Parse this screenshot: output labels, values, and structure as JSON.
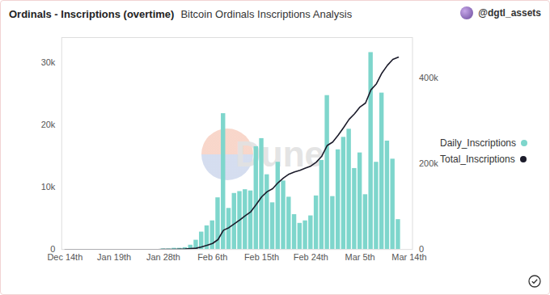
{
  "chart_data": {
    "type": "bar",
    "title": "Ordinals - Inscriptions (overtime)",
    "subtitle": "Bitcoin Ordinals Inscriptions Analysis",
    "source": "@dgtl_assets",
    "annotations": [
      "Dune"
    ],
    "categories": [
      "Dec 14th",
      null,
      null,
      null,
      null,
      null,
      null,
      null,
      null,
      "Jan 19th",
      null,
      null,
      null,
      null,
      null,
      null,
      null,
      null,
      "Jan 28th",
      null,
      null,
      null,
      null,
      null,
      null,
      null,
      null,
      "Feb 6th",
      null,
      null,
      null,
      null,
      null,
      null,
      null,
      null,
      "Feb 15th",
      null,
      null,
      null,
      null,
      null,
      null,
      null,
      null,
      "Feb 24th",
      null,
      null,
      null,
      null,
      null,
      null,
      null,
      null,
      "Mar 5th",
      null,
      null,
      null,
      null,
      null,
      null,
      null,
      null,
      "Mar 14th"
    ],
    "series": [
      {
        "name": "Daily_Inscriptions",
        "type": "bar",
        "color": "#7ed6cc",
        "values": [
          0,
          0,
          0,
          0,
          0,
          0,
          0,
          0,
          0,
          0,
          0,
          0,
          0,
          0,
          0,
          0,
          0,
          0,
          100,
          100,
          200,
          200,
          300,
          700,
          1500,
          2800,
          3800,
          4600,
          8300,
          21800,
          6600,
          9000,
          9300,
          9600,
          9400,
          16500,
          17800,
          12000,
          7500,
          14000,
          11000,
          8400,
          5600,
          4200,
          4600,
          5400,
          8600,
          14300,
          24700,
          8500,
          16000,
          18000,
          19300,
          13000,
          15500,
          8800,
          31600,
          14000,
          25100,
          17400,
          14500,
          4800,
          null,
          null
        ]
      },
      {
        "name": "Total_Inscriptions",
        "type": "line",
        "color": "#1b1b2a",
        "axis": "y2",
        "values": [
          0,
          0,
          0,
          0,
          0,
          0,
          0,
          0,
          0,
          0,
          0,
          0,
          0,
          0,
          0,
          0,
          0,
          0,
          100,
          200,
          400,
          600,
          1000,
          2000,
          3000,
          6000,
          10000,
          14000,
          23000,
          45000,
          51000,
          60000,
          69000,
          79000,
          88000,
          105000,
          123000,
          135000,
          142000,
          156000,
          167000,
          176000,
          181000,
          185000,
          190000,
          195000,
          204000,
          218000,
          243000,
          251000,
          267000,
          285000,
          304000,
          317000,
          333000,
          342000,
          373000,
          387000,
          412000,
          430000,
          444000,
          449000,
          null,
          null
        ]
      }
    ],
    "ylim": [
      0,
      34000
    ],
    "yticks": [
      0,
      {
        "value": 10000,
        "label": "10k"
      },
      {
        "value": 20000,
        "label": "20k"
      },
      {
        "value": 30000,
        "label": "30k"
      }
    ],
    "y2lim": [
      0,
      495000
    ],
    "y2ticks": [
      0,
      {
        "value": 200000,
        "label": "200k"
      },
      {
        "value": 400000,
        "label": "400k"
      }
    ],
    "grid": false,
    "legend": "right"
  }
}
